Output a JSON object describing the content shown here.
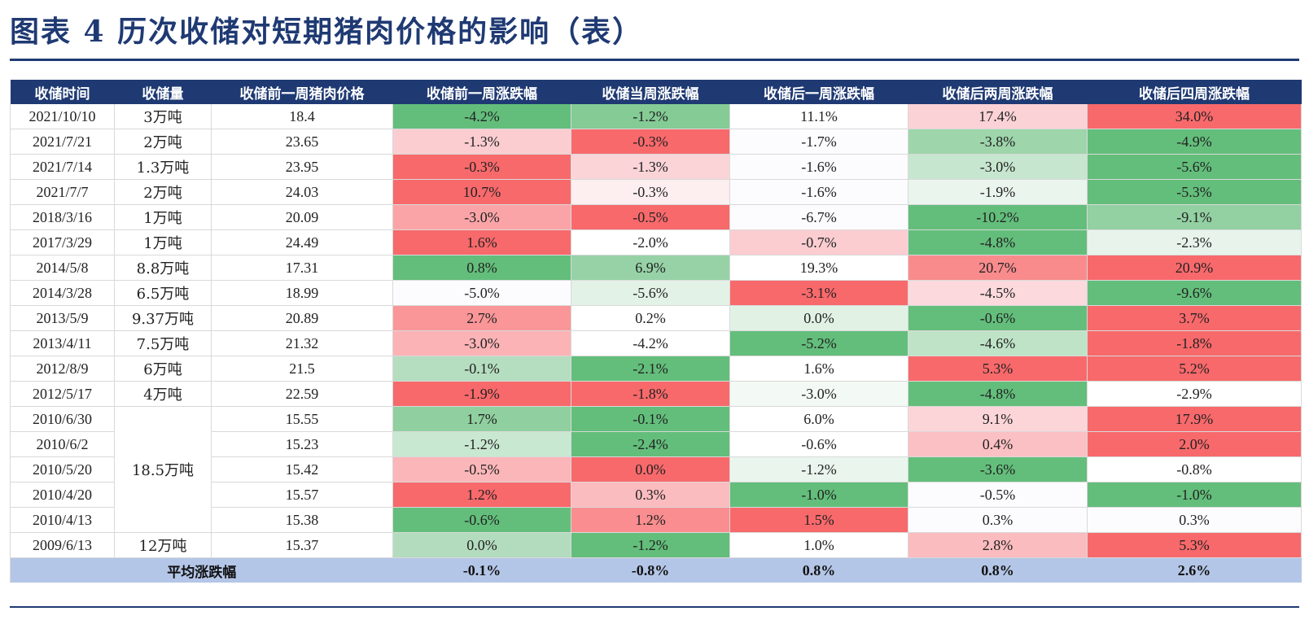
{
  "title": "图表 4    历次收储对短期猪肉价格的影响（表）",
  "table": {
    "headers": [
      "收储时间",
      "收储量",
      "收储前一周猪肉价格",
      "收储前一周涨跌幅",
      "收储当周涨跌幅",
      "收储后一周涨跌幅",
      "收储后两周涨跌幅",
      "收储后四周涨跌幅"
    ],
    "rows": [
      {
        "date": "2021/10/10",
        "volume": "3万吨",
        "price": "18.4",
        "changes": [
          "-4.2%",
          "-1.2%",
          "11.1%",
          "17.4%",
          "34.0%"
        ]
      },
      {
        "date": "2021/7/21",
        "volume": "2万吨",
        "price": "23.65",
        "changes": [
          "-1.3%",
          "-0.3%",
          "-1.7%",
          "-3.8%",
          "-4.9%"
        ]
      },
      {
        "date": "2021/7/14",
        "volume": "1.3万吨",
        "price": "23.95",
        "changes": [
          "-0.3%",
          "-1.3%",
          "-1.6%",
          "-3.0%",
          "-5.6%"
        ]
      },
      {
        "date": "2021/7/7",
        "volume": "2万吨",
        "price": "24.03",
        "changes": [
          "10.7%",
          "-0.3%",
          "-1.6%",
          "-1.9%",
          "-5.3%"
        ]
      },
      {
        "date": "2018/3/16",
        "volume": "1万吨",
        "price": "20.09",
        "changes": [
          "-3.0%",
          "-0.5%",
          "-6.7%",
          "-10.2%",
          "-9.1%"
        ]
      },
      {
        "date": "2017/3/29",
        "volume": "1万吨",
        "price": "24.49",
        "changes": [
          "1.6%",
          "-2.0%",
          "-0.7%",
          "-4.8%",
          "-2.3%"
        ]
      },
      {
        "date": "2014/5/8",
        "volume": "8.8万吨",
        "price": "17.31",
        "changes": [
          "0.8%",
          "6.9%",
          "19.3%",
          "20.7%",
          "20.9%"
        ]
      },
      {
        "date": "2014/3/28",
        "volume": "6.5万吨",
        "price": "18.99",
        "changes": [
          "-5.0%",
          "-5.6%",
          "-3.1%",
          "-4.5%",
          "-9.6%"
        ]
      },
      {
        "date": "2013/5/9",
        "volume": "9.37万吨",
        "price": "20.89",
        "changes": [
          "2.7%",
          "0.2%",
          "0.0%",
          "-0.6%",
          "3.7%"
        ]
      },
      {
        "date": "2013/4/11",
        "volume": "7.5万吨",
        "price": "21.32",
        "changes": [
          "-3.0%",
          "-4.2%",
          "-5.2%",
          "-4.6%",
          "-1.8%"
        ]
      },
      {
        "date": "2012/8/9",
        "volume": "6万吨",
        "price": "21.5",
        "changes": [
          "-0.1%",
          "-2.1%",
          "1.6%",
          "5.3%",
          "5.2%"
        ]
      },
      {
        "date": "2012/5/17",
        "volume": "4万吨",
        "price": "22.59",
        "changes": [
          "-1.9%",
          "-1.8%",
          "-3.0%",
          "-4.8%",
          "-2.9%"
        ]
      },
      {
        "date": "2010/6/30",
        "volume": "18.5万吨",
        "price": "15.55",
        "changes": [
          "1.7%",
          "-0.1%",
          "6.0%",
          "9.1%",
          "17.9%"
        ]
      },
      {
        "date": "2010/6/2",
        "volume": "",
        "price": "15.23",
        "changes": [
          "-1.2%",
          "-2.4%",
          "-0.6%",
          "0.4%",
          "2.0%"
        ]
      },
      {
        "date": "2010/5/20",
        "volume": "",
        "price": "15.42",
        "changes": [
          "-0.5%",
          "0.0%",
          "-1.2%",
          "-3.6%",
          "-0.8%"
        ]
      },
      {
        "date": "2010/4/20",
        "volume": "",
        "price": "15.57",
        "changes": [
          "1.2%",
          "0.3%",
          "-1.0%",
          "-0.5%",
          "-1.0%"
        ]
      },
      {
        "date": "2010/4/13",
        "volume": "",
        "price": "15.38",
        "changes": [
          "-0.6%",
          "1.2%",
          "1.5%",
          "0.3%",
          "0.3%"
        ]
      },
      {
        "date": "2009/6/13",
        "volume": "12万吨",
        "price": "15.37",
        "changes": [
          "0.0%",
          "-1.2%",
          "1.0%",
          "2.8%",
          "5.3%"
        ]
      }
    ],
    "average": {
      "label": "平均涨跌幅",
      "values": [
        "-0.1%",
        "-0.8%",
        "0.8%",
        "0.8%",
        "2.6%"
      ]
    },
    "cell_colors": [
      [
        "#63be7b",
        "#84cb95",
        "#ffffff",
        "#fbd2d6",
        "#f8696b"
      ],
      [
        "#fbcdd1",
        "#f8696b",
        "#fcfcff",
        "#9ed5ab",
        "#63be7b"
      ],
      [
        "#f8696b",
        "#fbd4d8",
        "#fcfcff",
        "#c7e6cf",
        "#63be7b"
      ],
      [
        "#f8696b",
        "#fdeef0",
        "#fcfcff",
        "#eaf5ed",
        "#63be7b"
      ],
      [
        "#faa4a7",
        "#f8696b",
        "#fcfcff",
        "#63be7b",
        "#93d0a2"
      ],
      [
        "#f8696b",
        "#ffffff",
        "#fbcdd1",
        "#63be7b",
        "#e8f4eb"
      ],
      [
        "#63be7b",
        "#96d2a6",
        "#ffffff",
        "#f98b8d",
        "#f8696b"
      ],
      [
        "#fcfcff",
        "#e3f2e7",
        "#f8696b",
        "#fbd9dc",
        "#63be7b"
      ],
      [
        "#fa9698",
        "#ffffff",
        "#e1f2e5",
        "#63be7b",
        "#f8696b"
      ],
      [
        "#fbb3b6",
        "#ffffff",
        "#63be7b",
        "#bfe3c7",
        "#f8696b"
      ],
      [
        "#b5ddc0",
        "#63be7b",
        "#ffffff",
        "#f8696b",
        "#f8696b"
      ],
      [
        "#f8696b",
        "#f8696b",
        "#f3f9f4",
        "#63be7b",
        "#ffffff"
      ],
      [
        "#90cf9f",
        "#63be7b",
        "#ffffff",
        "#fbd5d8",
        "#f8696b"
      ],
      [
        "#c9e8d1",
        "#63be7b",
        "#ffffff",
        "#fbc0c3",
        "#f8696b"
      ],
      [
        "#fbb6b9",
        "#f8696b",
        "#eaf5ed",
        "#63be7b",
        "#ffffff"
      ],
      [
        "#f8696b",
        "#fbbcbf",
        "#63be7b",
        "#fcfcff",
        "#63be7b"
      ],
      [
        "#63be7b",
        "#f98d8f",
        "#f8696b",
        "#fcfcff",
        "#fcfcff"
      ],
      [
        "#b3dcbe",
        "#63be7b",
        "#ffffff",
        "#fbbcbf",
        "#f8696b"
      ]
    ],
    "merged_volume": {
      "start_row": 12,
      "span": 5
    }
  }
}
